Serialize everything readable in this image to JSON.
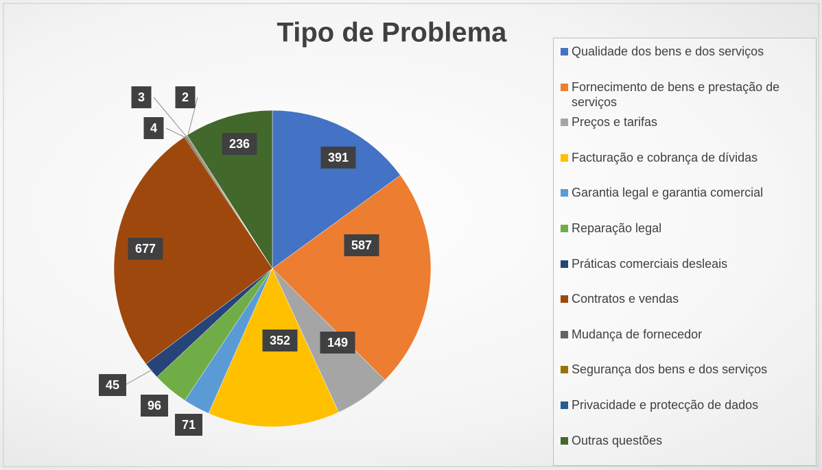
{
  "chart_data": {
    "type": "pie",
    "title": "Tipo de Problema",
    "categories": [
      "Qualidade dos bens e dos serviços",
      "Fornecimento de bens e prestação de serviços",
      "Preços e tarifas",
      "Facturação e cobrança de dívidas",
      "Garantia legal e garantia comercial",
      "Reparação legal",
      "Práticas comerciais desleais",
      "Contratos e vendas",
      "Mudança de fornecedor",
      "Segurança dos bens e dos serviços",
      "Privacidade e protecção de dados",
      "Outras questões"
    ],
    "values": [
      391,
      587,
      149,
      352,
      71,
      96,
      45,
      677,
      4,
      3,
      2,
      236
    ],
    "colors": [
      "#4472c4",
      "#ed7d31",
      "#a5a5a5",
      "#ffc000",
      "#5b9bd5",
      "#70ad47",
      "#264478",
      "#9e480e",
      "#636363",
      "#997300",
      "#255e91",
      "#43682b"
    ],
    "legend": "right"
  }
}
